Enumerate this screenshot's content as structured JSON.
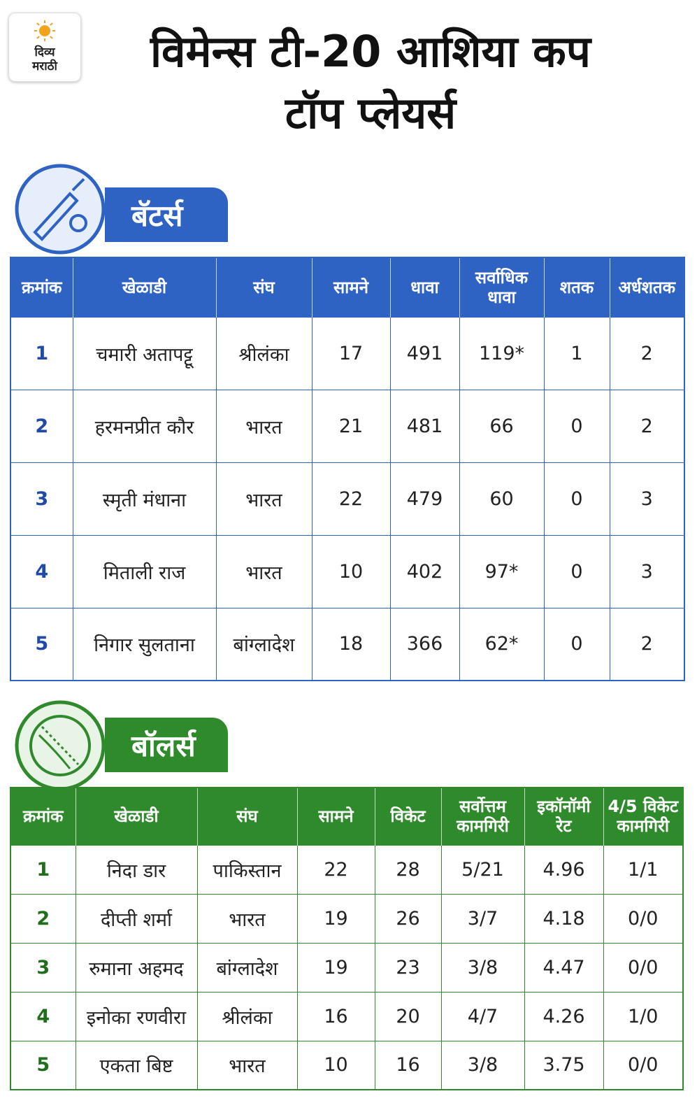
{
  "logo": {
    "line1": "दिव्य",
    "line2": "मराठी"
  },
  "title": {
    "line1": "विमेन्स टी-20 आशिया कप",
    "line2": "टॉप प्लेयर्स"
  },
  "batters": {
    "label": "बॅटर्स",
    "headers": [
      "क्रमांक",
      "खेळाडी",
      "संघ",
      "सामने",
      "धावा",
      "सर्वाधिक धावा",
      "शतक",
      "अर्धशतक"
    ],
    "rows": [
      [
        "1",
        "चमारी अतापट्टू",
        "श्रीलंका",
        "17",
        "491",
        "119*",
        "1",
        "2"
      ],
      [
        "2",
        "हरमनप्रीत कौर",
        "भारत",
        "21",
        "481",
        "66",
        "0",
        "2"
      ],
      [
        "3",
        "स्मृती मंधाना",
        "भारत",
        "22",
        "479",
        "60",
        "0",
        "3"
      ],
      [
        "4",
        "मिताली राज",
        "भारत",
        "10",
        "402",
        "97*",
        "0",
        "3"
      ],
      [
        "5",
        "निगार सुलताना",
        "बांग्लादेश",
        "18",
        "366",
        "62*",
        "0",
        "2"
      ]
    ]
  },
  "bowlers": {
    "label": "बॉलर्स",
    "headers": [
      "क्रमांक",
      "खेळाडी",
      "संघ",
      "सामने",
      "विकेट",
      "सर्वोत्तम कामगिरी",
      "इकॉनॉमी रेट",
      "4/5 विकेट कामगिरी"
    ],
    "rows": [
      [
        "1",
        "निदा डार",
        "पाकिस्तान",
        "22",
        "28",
        "5/21",
        "4.96",
        "1/1"
      ],
      [
        "2",
        "दीप्ती शर्मा",
        "भारत",
        "19",
        "26",
        "3/7",
        "4.18",
        "0/0"
      ],
      [
        "3",
        "रुमाना अहमद",
        "बांग्लादेश",
        "19",
        "23",
        "3/8",
        "4.47",
        "0/0"
      ],
      [
        "4",
        "इनोका रणवीरा",
        "श्रीलंका",
        "16",
        "20",
        "4/7",
        "4.26",
        "1/0"
      ],
      [
        "5",
        "एकता बिष्ट",
        "भारत",
        "10",
        "16",
        "3/8",
        "3.75",
        "0/0"
      ]
    ]
  }
}
